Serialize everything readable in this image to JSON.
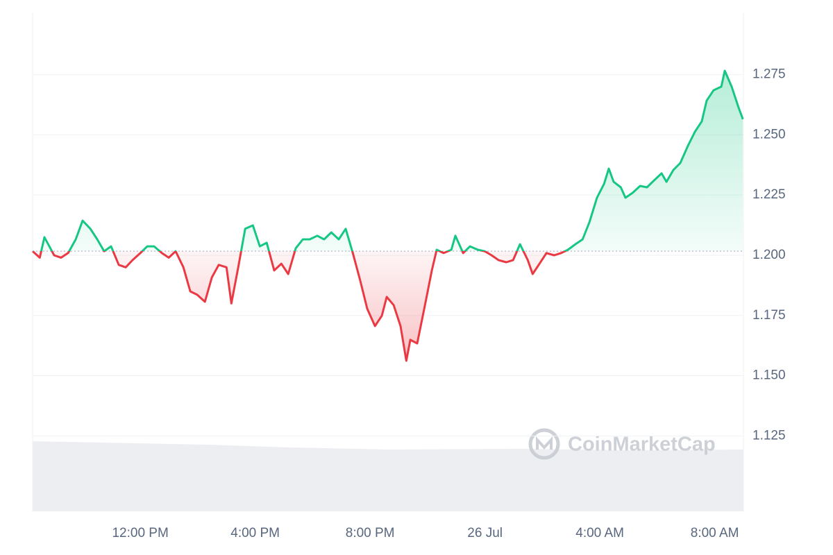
{
  "chart_data": {
    "type": "line",
    "x": [
      8.25,
      8.5,
      8.66,
      9.0,
      9.24,
      9.49,
      9.75,
      9.99,
      10.26,
      10.5,
      10.74,
      10.98,
      11.25,
      11.49,
      11.73,
      12.0,
      12.24,
      12.48,
      12.75,
      12.99,
      13.23,
      13.5,
      13.74,
      13.98,
      14.25,
      14.49,
      14.73,
      15.0,
      15.17,
      15.41,
      15.65,
      15.92,
      16.16,
      16.4,
      16.66,
      16.91,
      17.15,
      17.41,
      17.66,
      17.9,
      18.16,
      18.4,
      18.65,
      18.91,
      19.15,
      19.4,
      19.66,
      19.9,
      20.17,
      20.41,
      20.58,
      20.82,
      21.06,
      21.26,
      21.4,
      21.64,
      21.91,
      22.15,
      22.32,
      22.56,
      22.83,
      22.97,
      23.24,
      23.48,
      23.75,
      23.99,
      24.23,
      24.47,
      24.74,
      24.98,
      25.22,
      25.49,
      25.66,
      25.9,
      26.14,
      26.41,
      26.65,
      26.89,
      27.15,
      27.4,
      27.64,
      27.9,
      28.15,
      28.31,
      28.48,
      28.73,
      28.89,
      29.14,
      29.4,
      29.64,
      29.89,
      30.15,
      30.32,
      30.56,
      30.8,
      31.07,
      31.31,
      31.55,
      31.72,
      31.96,
      32.23,
      32.35,
      32.59,
      32.83,
      32.98
    ],
    "values": [
      1.2017,
      1.199,
      1.2075,
      1.2,
      1.199,
      1.201,
      1.2066,
      1.2144,
      1.211,
      1.2066,
      1.2017,
      1.2037,
      1.196,
      1.195,
      1.198,
      1.2009,
      1.2037,
      1.2037,
      1.2009,
      1.199,
      1.2017,
      1.195,
      1.185,
      1.1836,
      1.1807,
      1.1908,
      1.196,
      1.195,
      1.18,
      1.195,
      1.211,
      1.2124,
      1.2037,
      1.2052,
      1.1937,
      1.1965,
      1.1922,
      1.2029,
      1.2066,
      1.2066,
      1.2081,
      1.2066,
      1.2095,
      1.2066,
      1.211,
      1.2009,
      1.1893,
      1.1778,
      1.1706,
      1.1749,
      1.1827,
      1.1793,
      1.1706,
      1.1562,
      1.1649,
      1.1634,
      1.1793,
      1.1937,
      1.2023,
      1.2009,
      1.2023,
      1.2081,
      1.2009,
      1.2037,
      1.2023,
      1.2017,
      1.2,
      1.198,
      1.1971,
      1.198,
      1.2046,
      1.198,
      1.1922,
      1.1965,
      1.2009,
      1.2,
      1.2009,
      1.2023,
      1.2046,
      1.2066,
      1.2138,
      1.2239,
      1.2297,
      1.236,
      1.2305,
      1.2282,
      1.2239,
      1.2259,
      1.2288,
      1.2282,
      1.2311,
      1.234,
      1.2305,
      1.2354,
      1.2383,
      1.2455,
      1.2513,
      1.2556,
      1.2642,
      1.2685,
      1.27,
      1.2766,
      1.27,
      1.2613,
      1.2565
    ],
    "baseline": 1.2017,
    "up_color": "#16c784",
    "down_color": "#ea3943",
    "xlim": [
      8.25,
      33
    ],
    "xticks": [
      {
        "value": 12,
        "label": "12:00 PM"
      },
      {
        "value": 16,
        "label": "4:00 PM"
      },
      {
        "value": 20,
        "label": "8:00 PM"
      },
      {
        "value": 24,
        "label": "26 Jul"
      },
      {
        "value": 28,
        "label": "4:00 AM"
      },
      {
        "value": 32,
        "label": "8:00 AM"
      }
    ],
    "ylim": [
      1.0937,
      1.3008
    ],
    "yticks": [
      1.125,
      {
        "value": 1.15,
        "label": "1.150"
      },
      1.175,
      {
        "value": 1.2,
        "label": "1.200"
      },
      1.225,
      {
        "value": 1.25,
        "label": "1.250"
      },
      1.275
    ],
    "grid": true,
    "watermark": "CoinMarketCap"
  }
}
